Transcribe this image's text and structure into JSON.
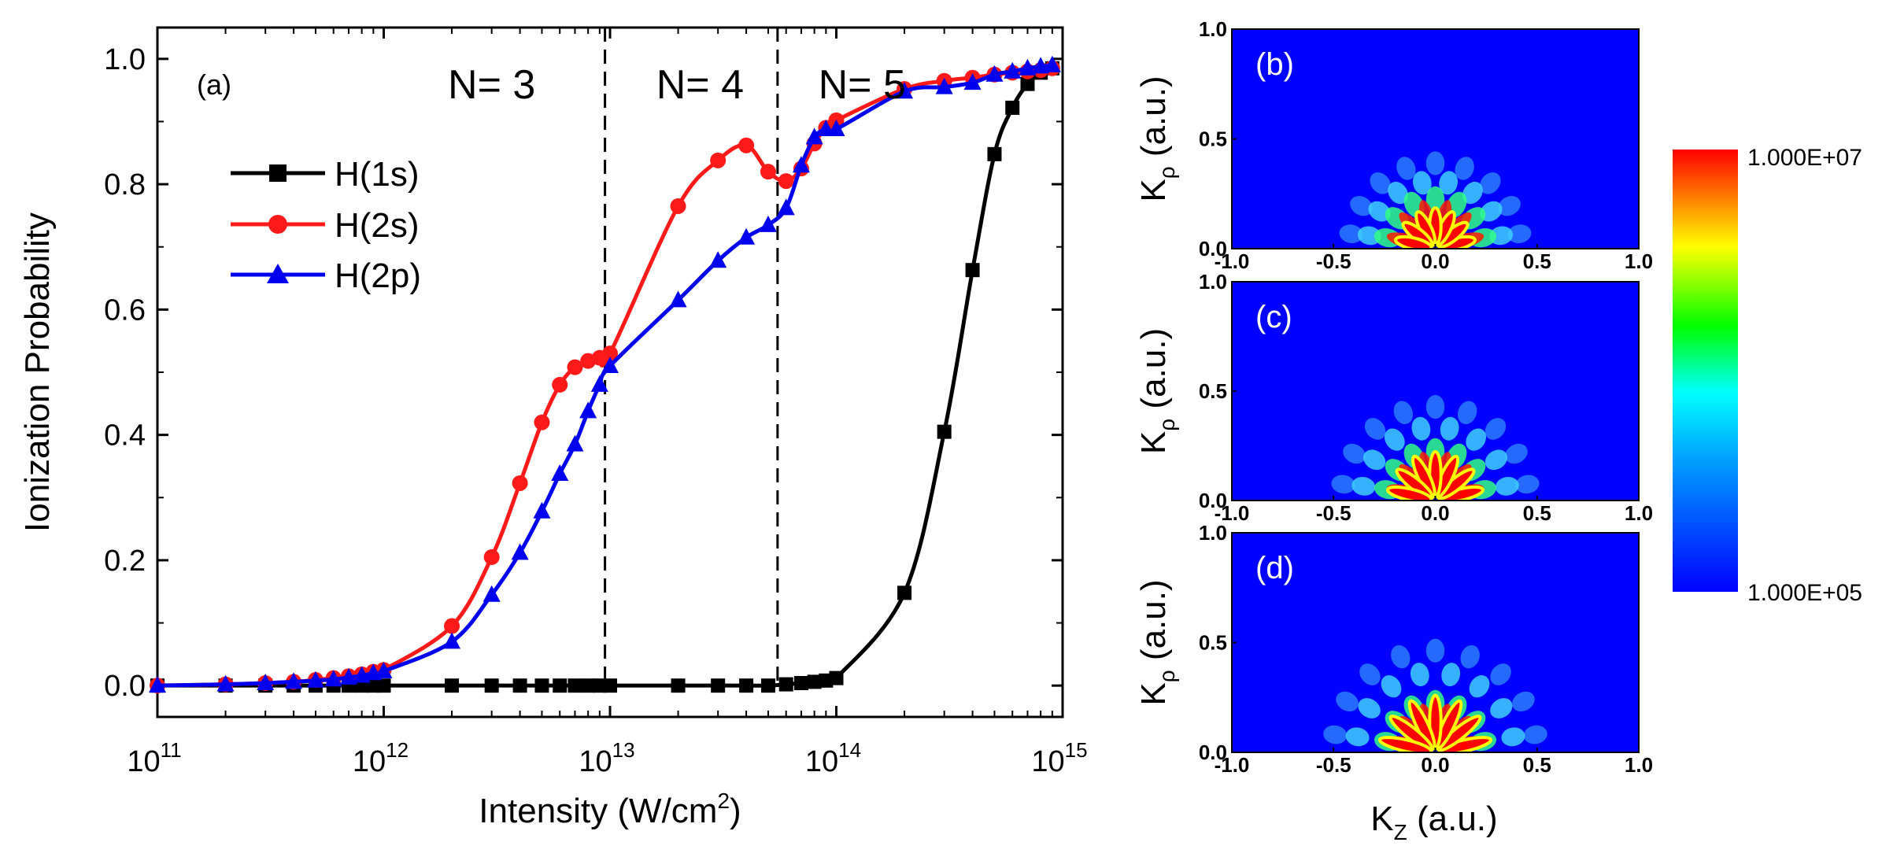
{
  "chart_data": [
    {
      "type": "line",
      "panel": "(a)",
      "xlabel": "Intensity (W/cm",
      "xlabel_sup": "2",
      "xlabel_close": ")",
      "ylabel": "Ionization Probability",
      "xscale": "log",
      "xlim": [
        100000000000.0,
        1000000000000000.0
      ],
      "ylim": [
        -0.05,
        1.05
      ],
      "x_ticks": [
        {
          "base": "10",
          "exp": "11"
        },
        {
          "base": "10",
          "exp": "12"
        },
        {
          "base": "10",
          "exp": "13"
        },
        {
          "base": "10",
          "exp": "14"
        },
        {
          "base": "10",
          "exp": "15"
        }
      ],
      "y_ticks": [
        "0.0",
        "0.2",
        "0.4",
        "0.6",
        "0.8",
        "1.0"
      ],
      "regions": [
        {
          "label": "N= 3",
          "x": 3000000000000.0
        },
        {
          "label": "N= 4",
          "x": 25000000000000.0
        },
        {
          "label": "N= 5",
          "x": 130000000000000.0
        }
      ],
      "vlines": [
        9500000000000.0,
        55000000000000.0
      ],
      "legend_position": "upper-left",
      "series": [
        {
          "name": "H(1s)",
          "color": "#000000",
          "marker": "square",
          "x": [
            100000000000.0,
            200000000000.0,
            300000000000.0,
            400000000000.0,
            500000000000.0,
            600000000000.0,
            700000000000.0,
            800000000000.0,
            900000000000.0,
            1000000000000.0,
            2000000000000.0,
            3000000000000.0,
            4000000000000.0,
            5000000000000.0,
            6000000000000.0,
            7000000000000.0,
            8000000000000.0,
            9000000000000.0,
            10000000000000.0,
            20000000000000.0,
            30000000000000.0,
            40000000000000.0,
            50000000000000.0,
            60000000000000.0,
            70000000000000.0,
            80000000000000.0,
            90000000000000.0,
            100000000000000.0,
            200000000000000.0,
            300000000000000.0,
            400000000000000.0,
            500000000000000.0,
            600000000000000.0,
            700000000000000.0,
            800000000000000.0,
            900000000000000.0
          ],
          "y": [
            0,
            0,
            0,
            0,
            0,
            0,
            0,
            0,
            0,
            0,
            0,
            0,
            0,
            0,
            0,
            0,
            0,
            0,
            0,
            0,
            0,
            0,
            0,
            0.002,
            0.004,
            0.006,
            0.008,
            0.012,
            0.148,
            0.405,
            0.663,
            0.848,
            0.922,
            0.96,
            0.978,
            0.985
          ]
        },
        {
          "name": "H(2s)",
          "color": "#ff1a1a",
          "marker": "circle",
          "x": [
            100000000000.0,
            200000000000.0,
            300000000000.0,
            400000000000.0,
            500000000000.0,
            600000000000.0,
            700000000000.0,
            800000000000.0,
            900000000000.0,
            1000000000000.0,
            2000000000000.0,
            3000000000000.0,
            4000000000000.0,
            5000000000000.0,
            6000000000000.0,
            7000000000000.0,
            8000000000000.0,
            9000000000000.0,
            10000000000000.0,
            20000000000000.0,
            30000000000000.0,
            40000000000000.0,
            50000000000000.0,
            60000000000000.0,
            70000000000000.0,
            80000000000000.0,
            90000000000000.0,
            100000000000000.0,
            200000000000000.0,
            300000000000000.0,
            400000000000000.0,
            500000000000000.0,
            600000000000000.0,
            700000000000000.0,
            800000000000000.0,
            900000000000000.0
          ],
          "y": [
            0,
            0.002,
            0.004,
            0.006,
            0.009,
            0.012,
            0.015,
            0.018,
            0.022,
            0.025,
            0.095,
            0.205,
            0.323,
            0.42,
            0.48,
            0.508,
            0.518,
            0.523,
            0.53,
            0.765,
            0.838,
            0.862,
            0.82,
            0.805,
            0.825,
            0.865,
            0.89,
            0.902,
            0.952,
            0.965,
            0.97,
            0.975,
            0.978,
            0.98,
            0.982,
            0.985
          ]
        },
        {
          "name": "H(2p)",
          "color": "#0000ee",
          "marker": "triangle",
          "x": [
            100000000000.0,
            200000000000.0,
            300000000000.0,
            400000000000.0,
            500000000000.0,
            600000000000.0,
            700000000000.0,
            800000000000.0,
            900000000000.0,
            1000000000000.0,
            2000000000000.0,
            3000000000000.0,
            4000000000000.0,
            5000000000000.0,
            6000000000000.0,
            7000000000000.0,
            8000000000000.0,
            9000000000000.0,
            10000000000000.0,
            20000000000000.0,
            30000000000000.0,
            40000000000000.0,
            50000000000000.0,
            60000000000000.0,
            70000000000000.0,
            80000000000000.0,
            90000000000000.0,
            100000000000000.0,
            200000000000000.0,
            300000000000000.0,
            400000000000000.0,
            500000000000000.0,
            600000000000000.0,
            700000000000000.0,
            800000000000000.0,
            900000000000000.0
          ],
          "y": [
            0,
            0.002,
            0.004,
            0.006,
            0.008,
            0.01,
            0.013,
            0.016,
            0.02,
            0.023,
            0.07,
            0.145,
            0.212,
            0.278,
            0.338,
            0.385,
            0.438,
            0.48,
            0.51,
            0.615,
            0.678,
            0.715,
            0.735,
            0.762,
            0.83,
            0.875,
            0.888,
            0.888,
            0.948,
            0.955,
            0.962,
            0.975,
            0.98,
            0.985,
            0.988,
            0.99
          ]
        }
      ]
    },
    {
      "type": "heatmap",
      "panels": [
        "(b)",
        "(c)",
        "(d)"
      ],
      "xlabel_base": "K",
      "xlabel_sub": "Z",
      "xlabel_rest": " (a.u.)",
      "ylabel_base": "K",
      "ylabel_sub": "ρ",
      "ylabel_rest": " (a.u.)",
      "xlim": [
        -1.0,
        1.0
      ],
      "ylim": [
        0.0,
        1.0
      ],
      "x_ticks": [
        "-1.0",
        "-0.5",
        "0.0",
        "0.5",
        "1.0"
      ],
      "y_ticks": [
        "0.0",
        "0.5",
        "1.0"
      ],
      "colorbar": {
        "max": "1.000E+07",
        "min": "1.000E+05",
        "colors": [
          "#0000ff",
          "#00ffff",
          "#00ff00",
          "#ffff00",
          "#ff0000"
        ]
      },
      "background_color": "#0000ff"
    }
  ]
}
